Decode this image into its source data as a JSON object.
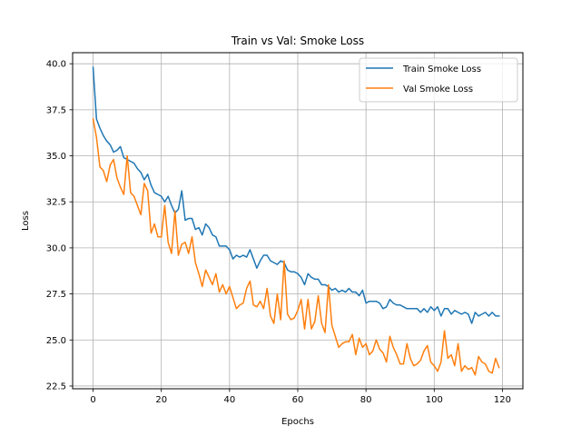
{
  "chart_data": {
    "type": "line",
    "title": "Train vs Val: Smoke Loss",
    "xlabel": "Epochs",
    "ylabel": "Loss",
    "xlim": [
      -6,
      126
    ],
    "ylim": [
      22.35,
      40.6
    ],
    "xticks": [
      0,
      20,
      40,
      60,
      80,
      100,
      120
    ],
    "yticks": [
      22.5,
      25.0,
      27.5,
      30.0,
      32.5,
      35.0,
      37.5,
      40.0
    ],
    "ytick_labels": [
      "22.5",
      "25.0",
      "27.5",
      "30.0",
      "32.5",
      "35.0",
      "37.5",
      "40.0"
    ],
    "grid": true,
    "legend_position": "top-right",
    "colors": {
      "train": "#1f77b4",
      "val": "#ff7f0e",
      "grid": "#b0b0b0"
    },
    "x": [
      0,
      1,
      2,
      3,
      4,
      5,
      6,
      7,
      8,
      9,
      10,
      11,
      12,
      13,
      14,
      15,
      16,
      17,
      18,
      19,
      20,
      21,
      22,
      23,
      24,
      25,
      26,
      27,
      28,
      29,
      30,
      31,
      32,
      33,
      34,
      35,
      36,
      37,
      38,
      39,
      40,
      41,
      42,
      43,
      44,
      45,
      46,
      47,
      48,
      49,
      50,
      51,
      52,
      53,
      54,
      55,
      56,
      57,
      58,
      59,
      60,
      61,
      62,
      63,
      64,
      65,
      66,
      67,
      68,
      69,
      70,
      71,
      72,
      73,
      74,
      75,
      76,
      77,
      78,
      79,
      80,
      81,
      82,
      83,
      84,
      85,
      86,
      87,
      88,
      89,
      90,
      91,
      92,
      93,
      94,
      95,
      96,
      97,
      98,
      99,
      100,
      101,
      102,
      103,
      104,
      105,
      106,
      107,
      108,
      109,
      110,
      111,
      112,
      113,
      114,
      115,
      116,
      117,
      118,
      119
    ],
    "series": [
      {
        "name": "Train Smoke Loss",
        "values": [
          39.8,
          37.0,
          36.5,
          36.1,
          35.8,
          35.6,
          35.2,
          35.3,
          35.5,
          34.9,
          34.8,
          34.7,
          34.6,
          34.3,
          34.1,
          33.7,
          34.0,
          33.4,
          33.0,
          32.9,
          32.8,
          32.5,
          32.8,
          32.3,
          31.9,
          32.1,
          33.1,
          31.5,
          31.6,
          31.6,
          31.0,
          31.1,
          30.7,
          31.3,
          31.1,
          30.7,
          30.6,
          30.1,
          30.1,
          30.1,
          29.9,
          29.4,
          29.6,
          29.5,
          29.6,
          29.5,
          29.9,
          29.4,
          28.9,
          29.3,
          29.6,
          29.6,
          29.3,
          29.2,
          29.1,
          29.3,
          29.2,
          28.8,
          28.7,
          28.7,
          28.6,
          28.4,
          28.0,
          28.6,
          28.4,
          28.3,
          28.3,
          28.0,
          28.0,
          27.9,
          27.7,
          27.8,
          27.6,
          27.7,
          27.6,
          27.8,
          27.6,
          27.6,
          27.4,
          27.7,
          27.0,
          27.1,
          27.1,
          27.1,
          27.0,
          26.7,
          26.8,
          27.2,
          27.0,
          26.9,
          26.9,
          26.8,
          26.7,
          26.7,
          26.7,
          26.7,
          26.5,
          26.7,
          26.5,
          26.8,
          26.6,
          26.8,
          26.3,
          26.7,
          26.7,
          26.4,
          26.6,
          26.5,
          26.4,
          26.5,
          26.4,
          25.9,
          26.5,
          26.3,
          26.4,
          26.5,
          26.3,
          26.5,
          26.3,
          26.3
        ]
      },
      {
        "name": "Val Smoke Loss",
        "values": [
          37.0,
          36.0,
          34.4,
          34.2,
          33.6,
          34.5,
          34.8,
          33.8,
          33.3,
          32.9,
          35.0,
          33.0,
          32.8,
          32.3,
          31.8,
          33.5,
          33.1,
          30.8,
          31.3,
          30.6,
          30.6,
          32.3,
          30.3,
          29.7,
          32.0,
          29.6,
          30.2,
          30.3,
          29.7,
          30.6,
          29.2,
          28.6,
          27.9,
          28.8,
          28.4,
          28.0,
          28.6,
          27.6,
          28.0,
          27.5,
          27.9,
          27.3,
          26.7,
          26.9,
          27.0,
          27.8,
          28.2,
          26.9,
          26.8,
          27.1,
          26.7,
          27.8,
          26.3,
          25.9,
          27.5,
          26.1,
          29.3,
          26.4,
          26.1,
          26.2,
          26.6,
          27.2,
          25.6,
          27.2,
          25.6,
          26.0,
          27.4,
          25.9,
          25.4,
          28.0,
          25.8,
          25.2,
          24.6,
          24.8,
          24.9,
          24.9,
          25.3,
          24.2,
          25.1,
          24.6,
          24.8,
          24.2,
          24.4,
          25.0,
          24.5,
          24.3,
          23.8,
          25.2,
          24.6,
          24.2,
          23.7,
          23.7,
          24.8,
          24.0,
          23.6,
          23.7,
          23.9,
          24.4,
          24.7,
          23.8,
          23.6,
          23.3,
          23.8,
          25.5,
          24.0,
          24.2,
          23.6,
          24.8,
          23.3,
          23.6,
          23.4,
          23.5,
          23.1,
          24.1,
          23.8,
          23.7,
          23.3,
          23.2,
          24.0,
          23.5
        ]
      }
    ]
  }
}
